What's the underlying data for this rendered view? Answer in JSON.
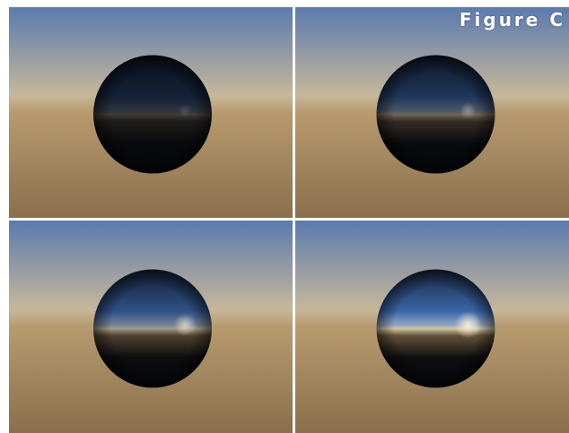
{
  "figure": {
    "label": "Figure C",
    "panels": [
      {
        "name": "panel-top-left",
        "sphere_brightness": 0.25,
        "horizon_glow": 0.15
      },
      {
        "name": "panel-top-right",
        "sphere_brightness": 0.45,
        "horizon_glow": 0.35
      },
      {
        "name": "panel-bottom-left",
        "sphere_brightness": 0.7,
        "horizon_glow": 0.65
      },
      {
        "name": "panel-bottom-right",
        "sphere_brightness": 0.9,
        "horizon_glow": 0.9
      }
    ]
  },
  "colors": {
    "sky_top": "#5a7bb0",
    "sky_horizon": "#c7b79a",
    "ground_horizon": "#b79a6e",
    "ground_bottom": "#8a6f4c",
    "sphere_dark": "#05070d",
    "sun_glow": "#fff6e0",
    "divider": "#ffffff"
  }
}
